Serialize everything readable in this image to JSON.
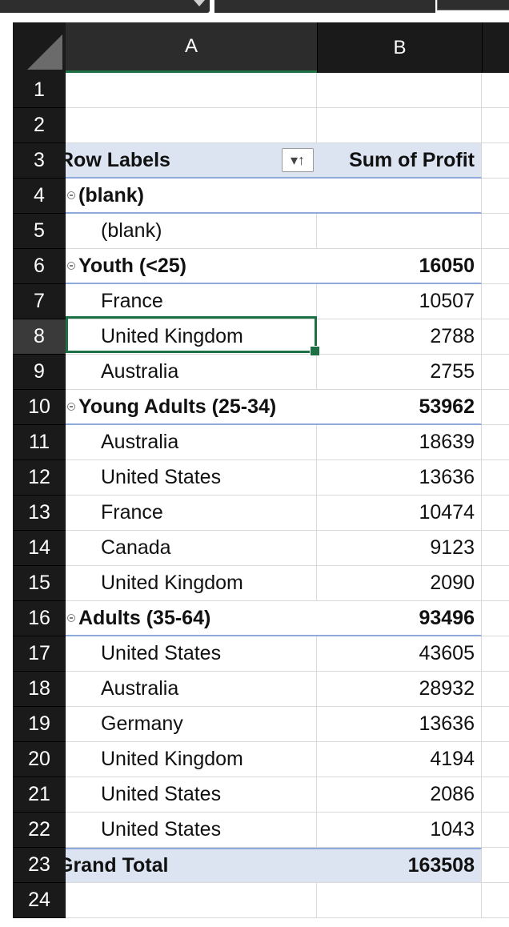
{
  "columns": [
    {
      "label": "A"
    },
    {
      "label": "B"
    }
  ],
  "row_numbers": [
    "1",
    "2",
    "3",
    "4",
    "5",
    "6",
    "7",
    "8",
    "9",
    "10",
    "11",
    "12",
    "13",
    "14",
    "15",
    "16",
    "17",
    "18",
    "19",
    "20",
    "21",
    "22",
    "23",
    "24"
  ],
  "selected_row": "8",
  "pivot": {
    "header": {
      "row_labels": "Row Labels",
      "value_header": "Sum of Profit"
    },
    "rows": [
      {
        "type": "empty",
        "label": "",
        "value": ""
      },
      {
        "type": "empty",
        "label": "",
        "value": ""
      },
      {
        "type": "header",
        "label": "Row Labels",
        "value": "Sum of Profit"
      },
      {
        "type": "group",
        "label": "(blank)",
        "value": ""
      },
      {
        "type": "item",
        "label": "(blank)",
        "value": ""
      },
      {
        "type": "group",
        "label": "Youth (<25)",
        "value": "16050"
      },
      {
        "type": "item",
        "label": "France",
        "value": "10507"
      },
      {
        "type": "item",
        "label": "United Kingdom",
        "value": "2788"
      },
      {
        "type": "item",
        "label": "Australia",
        "value": "2755"
      },
      {
        "type": "group",
        "label": "Young Adults (25-34)",
        "value": "53962"
      },
      {
        "type": "item",
        "label": "Australia",
        "value": "18639"
      },
      {
        "type": "item",
        "label": "United States",
        "value": "13636"
      },
      {
        "type": "item",
        "label": "France",
        "value": "10474"
      },
      {
        "type": "item",
        "label": "Canada",
        "value": "9123"
      },
      {
        "type": "item",
        "label": "United Kingdom",
        "value": "2090"
      },
      {
        "type": "group",
        "label": "Adults (35-64)",
        "value": "93496"
      },
      {
        "type": "item",
        "label": "United States",
        "value": "43605"
      },
      {
        "type": "item",
        "label": "Australia",
        "value": "28932"
      },
      {
        "type": "item",
        "label": "Germany",
        "value": "13636"
      },
      {
        "type": "item",
        "label": "United Kingdom",
        "value": "4194"
      },
      {
        "type": "item",
        "label": "United  States",
        "value": "2086"
      },
      {
        "type": "item",
        "label": "United States",
        "value": "1043"
      },
      {
        "type": "total",
        "label": "Grand Total",
        "value": "163508"
      },
      {
        "type": "empty",
        "label": "",
        "value": ""
      }
    ]
  },
  "icons": {
    "filter_sort": "filter-sort-ascending-icon",
    "collapse": "collapse-minus-icon"
  },
  "colors": {
    "selection": "#1e7145",
    "pivot_header_fill": "#dce4f2",
    "pivot_rule": "#8ea9db",
    "header_bg": "#1a1a1a"
  }
}
